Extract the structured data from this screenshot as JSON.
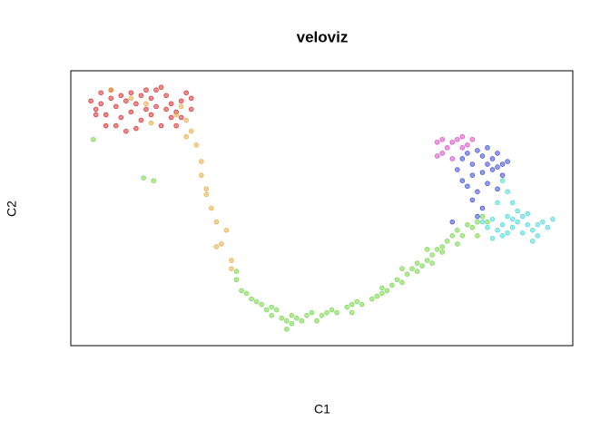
{
  "chart_data": {
    "type": "scatter",
    "title": "veloviz",
    "x_label": "C1",
    "y_label": "C2",
    "xlim": [
      0,
      100
    ],
    "ylim": [
      0,
      100
    ],
    "series": [
      {
        "color": "#d7191c",
        "x": [
          5,
          6,
          7,
          8,
          9,
          10,
          11,
          12,
          6,
          8,
          10,
          12,
          13,
          14,
          15,
          16,
          17,
          18,
          19,
          20,
          21,
          22,
          23,
          24,
          21,
          20,
          17,
          15,
          14,
          9,
          11,
          7,
          4,
          5,
          13,
          19,
          22,
          24,
          16,
          18
        ],
        "y": [
          86,
          88,
          84,
          90,
          87,
          83,
          89,
          85,
          92,
          93,
          91,
          92,
          88,
          82,
          86,
          90,
          93,
          94,
          91,
          88,
          85,
          89,
          92,
          86,
          80,
          83,
          87,
          93,
          91,
          80,
          78,
          80,
          89,
          84,
          79,
          86,
          83,
          90,
          84,
          80
        ]
      },
      {
        "color": "#e6a532",
        "x": [
          8,
          15,
          22,
          23,
          16,
          24,
          23,
          25,
          26,
          26,
          27,
          27,
          28,
          29,
          31,
          30,
          29,
          32,
          32,
          21,
          12
        ],
        "y": [
          93,
          88,
          87,
          82,
          81,
          78,
          76,
          73,
          67,
          62,
          57,
          55,
          50,
          45,
          42,
          37,
          36,
          31,
          28,
          84,
          90
        ]
      },
      {
        "color": "#6ad43a",
        "x": [
          4.5,
          14.5,
          16.5,
          33,
          33,
          34,
          35,
          36,
          37,
          38,
          40,
          41,
          42,
          43,
          44,
          40,
          45,
          46,
          47,
          48,
          49,
          50,
          51,
          52,
          53,
          55,
          56,
          57,
          58,
          60,
          61,
          62,
          63,
          64,
          65,
          66,
          67,
          68,
          69,
          70,
          71,
          72,
          73,
          74,
          75,
          76,
          77,
          78,
          79,
          80,
          81,
          82,
          83,
          74,
          72,
          69,
          44,
          43,
          39,
          56,
          62,
          66,
          71,
          77,
          81
        ],
        "y": [
          75,
          61,
          60,
          27,
          24,
          20,
          19,
          17,
          16,
          15,
          14,
          13,
          10,
          9,
          8,
          11,
          10,
          9,
          11,
          12,
          9,
          11,
          12,
          13,
          12,
          14,
          15,
          16,
          15,
          17,
          18,
          19,
          20,
          22,
          24,
          23,
          26,
          28,
          27,
          29,
          31,
          33,
          35,
          36,
          38,
          40,
          42,
          40,
          44,
          43,
          45,
          47,
          45,
          34,
          30,
          30,
          11,
          6,
          13,
          12,
          21,
          28,
          35,
          37,
          40
        ]
      },
      {
        "color": "#2b3bd8",
        "x": [
          77,
          78,
          79,
          80,
          81,
          82,
          83,
          84,
          85,
          86,
          87,
          80,
          82,
          84,
          86,
          79,
          81,
          83,
          80,
          82,
          85,
          78,
          83,
          85,
          76,
          81
        ],
        "y": [
          64,
          68,
          70,
          66,
          71,
          69,
          72,
          68,
          70,
          66,
          67,
          62,
          63,
          64,
          62,
          58,
          56,
          59,
          53,
          50,
          57,
          60,
          66,
          65,
          45,
          47
        ]
      },
      {
        "color": "#d93bc2",
        "x": [
          73,
          74,
          75,
          76,
          77,
          78,
          79,
          80,
          74,
          76,
          73,
          78
        ],
        "y": [
          74,
          75,
          72,
          74,
          75,
          76,
          73,
          75,
          70,
          68,
          69,
          72
        ]
      },
      {
        "color": "#3dd6d6",
        "x": [
          82,
          83,
          84,
          85,
          86,
          87,
          88,
          89,
          90,
          91,
          92,
          93,
          94,
          95,
          96,
          86,
          88,
          90,
          92,
          84,
          87,
          89,
          91,
          93,
          88,
          87,
          86,
          85
        ],
        "y": [
          45,
          43,
          46,
          42,
          44,
          47,
          43,
          45,
          41,
          44,
          42,
          40,
          45,
          43,
          46,
          40,
          46,
          47,
          38,
          39,
          41,
          49,
          48,
          44,
          52,
          56,
          60,
          52
        ]
      }
    ]
  }
}
